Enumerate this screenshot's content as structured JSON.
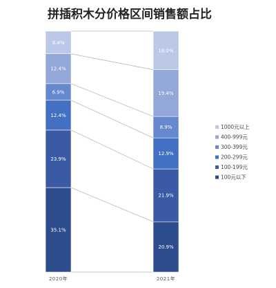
{
  "chart_data": {
    "type": "bar",
    "stacked": true,
    "title": "拼插积木分价格区间销售额占比",
    "categories": [
      "2020年",
      "2021年"
    ],
    "series": [
      {
        "name": "100元以下",
        "values": [
          35.1,
          20.9
        ],
        "color": "#2e4d8f"
      },
      {
        "name": "100-199元",
        "values": [
          23.9,
          21.9
        ],
        "color": "#3a5aa6"
      },
      {
        "name": "200-299元",
        "values": [
          12.4,
          12.9
        ],
        "color": "#4470c4"
      },
      {
        "name": "300-399元",
        "values": [
          6.9,
          8.9
        ],
        "color": "#6688cf"
      },
      {
        "name": "400-999元",
        "values": [
          12.4,
          19.4
        ],
        "color": "#93a7d8"
      },
      {
        "name": "1000元以上",
        "values": [
          9.4,
          16.0
        ],
        "color": "#bcc8e7"
      }
    ],
    "value_suffix": "%",
    "legend_position": "right",
    "connector_lines": true
  }
}
